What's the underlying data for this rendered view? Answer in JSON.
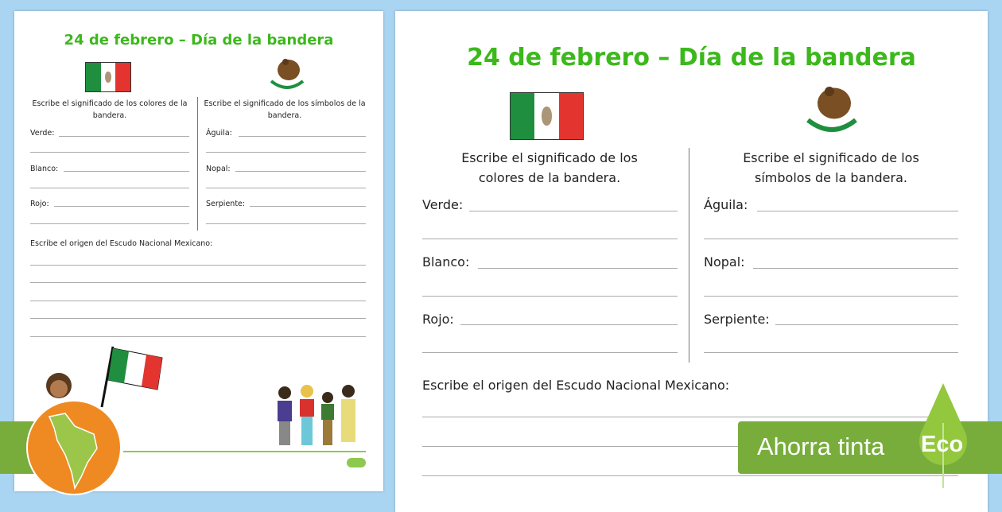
{
  "worksheet": {
    "title": "24 de febrero – Día de la bandera",
    "colors_prompt": "Escribe el significado de los colores de la bandera.",
    "symbols_prompt": "Escribe el significado de los símbolos de la bandera.",
    "colors": [
      "Verde:",
      "Blanco:",
      "Rojo:"
    ],
    "symbols": [
      "Águila:",
      "Nopal:",
      "Serpiente:"
    ],
    "origin_prompt": "Escribe el origen del Escudo Nacional Mexicano:"
  },
  "banner": {
    "label": "Ahorra tinta",
    "badge": "Eco"
  },
  "colors": {
    "background": "#a9d5f2",
    "title_green": "#3cb81c",
    "banner_green": "#78ad3c",
    "leaf_green": "#93c83e",
    "globe_orange": "#ef8a22"
  },
  "icons": [
    "mexican-flag-icon",
    "eagle-emblem-icon",
    "globe-south-america-icon",
    "leaf-icon",
    "children-illustration"
  ]
}
